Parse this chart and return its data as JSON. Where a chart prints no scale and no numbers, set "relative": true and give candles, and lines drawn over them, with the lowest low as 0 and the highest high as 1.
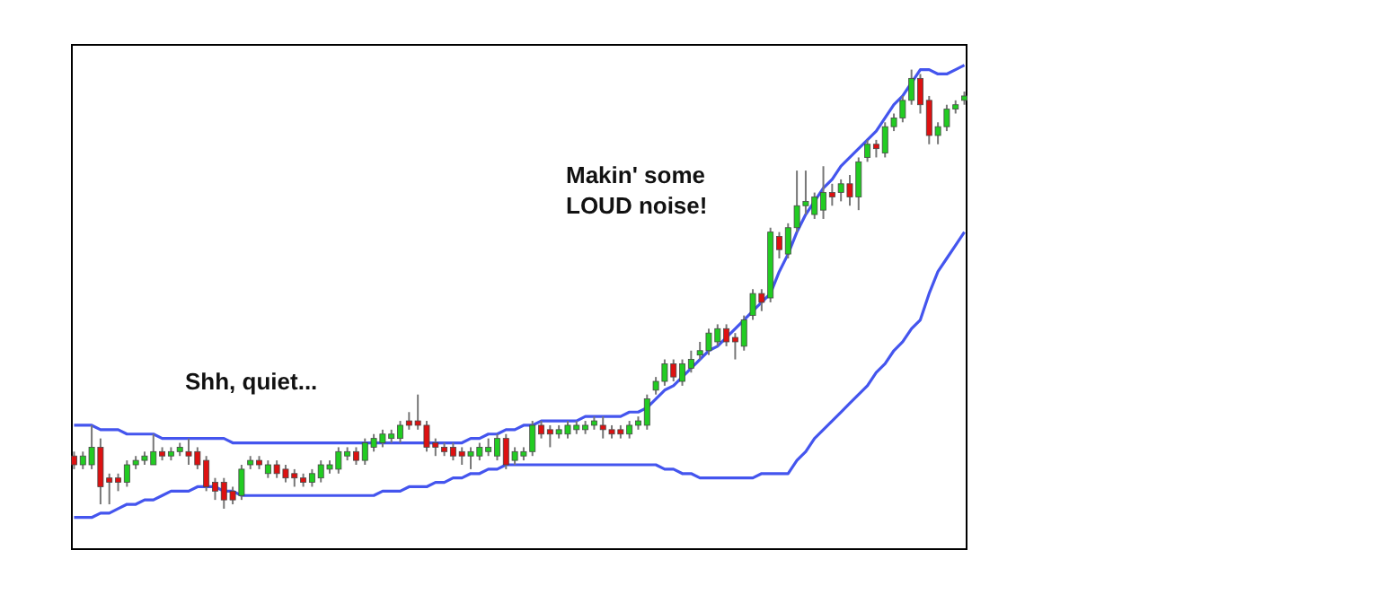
{
  "chart_data": {
    "type": "candlestick",
    "relative": true,
    "categories": [
      null,
      null,
      null,
      null,
      null,
      null,
      null,
      null,
      null,
      null,
      null,
      null,
      null,
      null,
      null,
      null,
      null,
      null,
      null,
      null,
      null,
      null,
      null,
      null,
      null,
      null,
      null,
      null,
      null,
      null,
      null,
      null,
      null,
      null,
      null,
      null,
      null,
      null,
      null,
      null,
      null,
      null,
      null,
      null,
      null,
      null,
      null,
      null,
      null,
      null,
      null,
      null,
      null,
      null,
      null,
      null,
      null,
      null,
      null,
      null,
      null,
      null,
      null,
      null,
      null,
      null,
      null,
      null,
      null,
      null,
      null,
      null,
      null,
      null,
      null,
      null,
      null,
      null,
      null,
      null,
      null,
      null,
      null,
      null,
      null,
      null,
      null,
      null,
      null,
      null,
      null,
      null,
      null,
      null,
      null,
      null,
      null,
      null,
      null,
      null,
      null,
      null
    ],
    "ohlc": [
      [
        0.12,
        0.13,
        0.09,
        0.1
      ],
      [
        0.1,
        0.13,
        0.09,
        0.12
      ],
      [
        0.1,
        0.19,
        0.09,
        0.14
      ],
      [
        0.14,
        0.16,
        0.01,
        0.05
      ],
      [
        0.07,
        0.08,
        0.01,
        0.06
      ],
      [
        0.07,
        0.08,
        0.04,
        0.06
      ],
      [
        0.06,
        0.11,
        0.05,
        0.1
      ],
      [
        0.1,
        0.12,
        0.09,
        0.11
      ],
      [
        0.11,
        0.13,
        0.1,
        0.12
      ],
      [
        0.1,
        0.17,
        0.1,
        0.13
      ],
      [
        0.13,
        0.14,
        0.11,
        0.12
      ],
      [
        0.12,
        0.14,
        0.11,
        0.13
      ],
      [
        0.13,
        0.15,
        0.12,
        0.14
      ],
      [
        0.13,
        0.16,
        0.1,
        0.12
      ],
      [
        0.13,
        0.14,
        0.09,
        0.1
      ],
      [
        0.11,
        0.12,
        0.04,
        0.05
      ],
      [
        0.06,
        0.07,
        0.02,
        0.04
      ],
      [
        0.06,
        0.07,
        0.0,
        0.02
      ],
      [
        0.04,
        0.05,
        0.01,
        0.02
      ],
      [
        0.03,
        0.1,
        0.02,
        0.09
      ],
      [
        0.1,
        0.12,
        0.09,
        0.11
      ],
      [
        0.11,
        0.12,
        0.09,
        0.1
      ],
      [
        0.08,
        0.11,
        0.07,
        0.1
      ],
      [
        0.1,
        0.11,
        0.07,
        0.08
      ],
      [
        0.09,
        0.1,
        0.06,
        0.07
      ],
      [
        0.08,
        0.09,
        0.05,
        0.07
      ],
      [
        0.07,
        0.08,
        0.05,
        0.06
      ],
      [
        0.06,
        0.09,
        0.05,
        0.08
      ],
      [
        0.07,
        0.11,
        0.06,
        0.1
      ],
      [
        0.09,
        0.11,
        0.08,
        0.1
      ],
      [
        0.09,
        0.14,
        0.08,
        0.13
      ],
      [
        0.12,
        0.14,
        0.11,
        0.13
      ],
      [
        0.13,
        0.14,
        0.1,
        0.11
      ],
      [
        0.11,
        0.16,
        0.1,
        0.15
      ],
      [
        0.14,
        0.17,
        0.13,
        0.16
      ],
      [
        0.15,
        0.18,
        0.14,
        0.17
      ],
      [
        0.16,
        0.18,
        0.15,
        0.17
      ],
      [
        0.16,
        0.2,
        0.15,
        0.19
      ],
      [
        0.2,
        0.22,
        0.18,
        0.19
      ],
      [
        0.2,
        0.26,
        0.18,
        0.19
      ],
      [
        0.19,
        0.2,
        0.13,
        0.14
      ],
      [
        0.15,
        0.16,
        0.12,
        0.14
      ],
      [
        0.14,
        0.15,
        0.12,
        0.13
      ],
      [
        0.14,
        0.15,
        0.11,
        0.12
      ],
      [
        0.13,
        0.14,
        0.1,
        0.12
      ],
      [
        0.12,
        0.14,
        0.09,
        0.13
      ],
      [
        0.12,
        0.15,
        0.11,
        0.14
      ],
      [
        0.13,
        0.16,
        0.12,
        0.14
      ],
      [
        0.12,
        0.17,
        0.11,
        0.16
      ],
      [
        0.16,
        0.17,
        0.09,
        0.1
      ],
      [
        0.11,
        0.14,
        0.1,
        0.13
      ],
      [
        0.12,
        0.14,
        0.11,
        0.13
      ],
      [
        0.13,
        0.2,
        0.12,
        0.19
      ],
      [
        0.19,
        0.2,
        0.16,
        0.17
      ],
      [
        0.18,
        0.19,
        0.14,
        0.17
      ],
      [
        0.17,
        0.19,
        0.16,
        0.18
      ],
      [
        0.17,
        0.2,
        0.16,
        0.19
      ],
      [
        0.18,
        0.2,
        0.17,
        0.19
      ],
      [
        0.18,
        0.2,
        0.17,
        0.19
      ],
      [
        0.19,
        0.21,
        0.18,
        0.2
      ],
      [
        0.19,
        0.21,
        0.16,
        0.18
      ],
      [
        0.18,
        0.19,
        0.16,
        0.17
      ],
      [
        0.18,
        0.19,
        0.16,
        0.17
      ],
      [
        0.17,
        0.2,
        0.16,
        0.19
      ],
      [
        0.19,
        0.21,
        0.18,
        0.2
      ],
      [
        0.19,
        0.26,
        0.18,
        0.25
      ],
      [
        0.27,
        0.3,
        0.26,
        0.29
      ],
      [
        0.29,
        0.34,
        0.28,
        0.33
      ],
      [
        0.33,
        0.34,
        0.29,
        0.3
      ],
      [
        0.29,
        0.34,
        0.28,
        0.33
      ],
      [
        0.32,
        0.36,
        0.31,
        0.34
      ],
      [
        0.35,
        0.38,
        0.34,
        0.36
      ],
      [
        0.36,
        0.41,
        0.35,
        0.4
      ],
      [
        0.38,
        0.42,
        0.37,
        0.41
      ],
      [
        0.41,
        0.42,
        0.37,
        0.38
      ],
      [
        0.39,
        0.4,
        0.34,
        0.38
      ],
      [
        0.37,
        0.44,
        0.36,
        0.43
      ],
      [
        0.44,
        0.5,
        0.43,
        0.49
      ],
      [
        0.49,
        0.5,
        0.45,
        0.47
      ],
      [
        0.48,
        0.64,
        0.47,
        0.63
      ],
      [
        0.62,
        0.63,
        0.57,
        0.59
      ],
      [
        0.58,
        0.65,
        0.57,
        0.64
      ],
      [
        0.64,
        0.77,
        0.63,
        0.69
      ],
      [
        0.69,
        0.77,
        0.67,
        0.7
      ],
      [
        0.67,
        0.72,
        0.66,
        0.71
      ],
      [
        0.68,
        0.78,
        0.66,
        0.72
      ],
      [
        0.72,
        0.74,
        0.69,
        0.71
      ],
      [
        0.72,
        0.75,
        0.7,
        0.74
      ],
      [
        0.74,
        0.76,
        0.69,
        0.71
      ],
      [
        0.71,
        0.8,
        0.68,
        0.79
      ],
      [
        0.8,
        0.84,
        0.79,
        0.83
      ],
      [
        0.83,
        0.84,
        0.8,
        0.82
      ],
      [
        0.81,
        0.88,
        0.8,
        0.87
      ],
      [
        0.87,
        0.9,
        0.86,
        0.89
      ],
      [
        0.89,
        0.94,
        0.88,
        0.93
      ],
      [
        0.93,
        1.0,
        0.92,
        0.98
      ],
      [
        0.98,
        0.99,
        0.9,
        0.92
      ],
      [
        0.93,
        0.94,
        0.83,
        0.85
      ],
      [
        0.85,
        0.88,
        0.83,
        0.87
      ],
      [
        0.87,
        0.92,
        0.86,
        0.91
      ],
      [
        0.91,
        0.93,
        0.9,
        0.92
      ],
      [
        0.93,
        0.95,
        0.92,
        0.94
      ]
    ],
    "series": [
      {
        "type": "line",
        "color": "#4455ee",
        "values": [
          0.19,
          0.19,
          0.19,
          0.18,
          0.18,
          0.18,
          0.17,
          0.17,
          0.17,
          0.17,
          0.16,
          0.16,
          0.16,
          0.16,
          0.16,
          0.16,
          0.16,
          0.16,
          0.15,
          0.15,
          0.15,
          0.15,
          0.15,
          0.15,
          0.15,
          0.15,
          0.15,
          0.15,
          0.15,
          0.15,
          0.15,
          0.15,
          0.15,
          0.15,
          0.15,
          0.15,
          0.15,
          0.15,
          0.15,
          0.15,
          0.15,
          0.15,
          0.15,
          0.15,
          0.15,
          0.16,
          0.16,
          0.17,
          0.17,
          0.18,
          0.18,
          0.19,
          0.19,
          0.2,
          0.2,
          0.2,
          0.2,
          0.2,
          0.21,
          0.21,
          0.21,
          0.21,
          0.21,
          0.22,
          0.22,
          0.23,
          0.25,
          0.27,
          0.28,
          0.3,
          0.32,
          0.34,
          0.36,
          0.37,
          0.39,
          0.41,
          0.43,
          0.45,
          0.47,
          0.49,
          0.54,
          0.58,
          0.63,
          0.67,
          0.7,
          0.73,
          0.75,
          0.78,
          0.8,
          0.82,
          0.84,
          0.86,
          0.89,
          0.92,
          0.94,
          0.97,
          1.0,
          1.0,
          0.99,
          0.99,
          1.0,
          1.01
        ]
      },
      {
        "type": "line",
        "color": "#4455ee",
        "values": [
          -0.02,
          -0.02,
          -0.02,
          -0.01,
          -0.01,
          0,
          0.01,
          0.01,
          0.02,
          0.02,
          0.03,
          0.04,
          0.04,
          0.04,
          0.05,
          0.05,
          0.05,
          0.04,
          0.04,
          0.03,
          0.03,
          0.03,
          0.03,
          0.03,
          0.03,
          0.03,
          0.03,
          0.03,
          0.03,
          0.03,
          0.03,
          0.03,
          0.03,
          0.03,
          0.03,
          0.04,
          0.04,
          0.04,
          0.05,
          0.05,
          0.05,
          0.06,
          0.06,
          0.07,
          0.07,
          0.08,
          0.08,
          0.09,
          0.09,
          0.1,
          0.1,
          0.1,
          0.1,
          0.1,
          0.1,
          0.1,
          0.1,
          0.1,
          0.1,
          0.1,
          0.1,
          0.1,
          0.1,
          0.1,
          0.1,
          0.1,
          0.1,
          0.09,
          0.09,
          0.08,
          0.08,
          0.07,
          0.07,
          0.07,
          0.07,
          0.07,
          0.07,
          0.07,
          0.08,
          0.08,
          0.08,
          0.08,
          0.11,
          0.13,
          0.16,
          0.18,
          0.2,
          0.22,
          0.24,
          0.26,
          0.28,
          0.31,
          0.33,
          0.36,
          0.38,
          0.41,
          0.43,
          0.49,
          0.54,
          0.57,
          0.6,
          0.63
        ]
      }
    ],
    "annotations": [
      "Shh, quiet...",
      "Makin' some\nLOUD noise!"
    ]
  }
}
